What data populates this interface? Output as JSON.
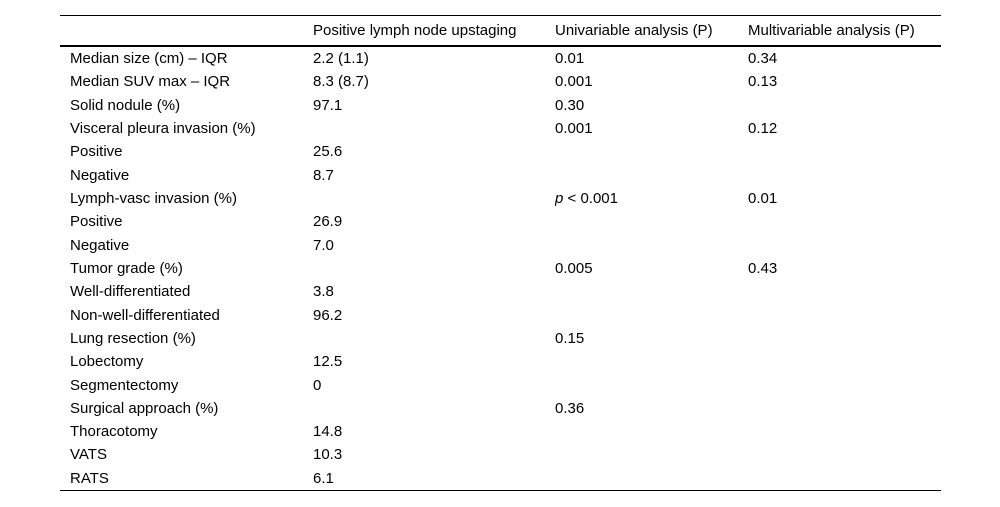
{
  "table": {
    "columns": [
      "",
      "Positive lymph node upstaging",
      "Univariable analysis (P)",
      "Multivariable analysis (P)"
    ],
    "rows": [
      {
        "label": "Median size (cm) – IQR",
        "upstaging": "2.2 (1.1)",
        "univariable": "0.01",
        "multivariable": "0.34"
      },
      {
        "label": "Median SUV max – IQR",
        "upstaging": "8.3 (8.7)",
        "univariable": "0.001",
        "multivariable": "0.13"
      },
      {
        "label": "Solid nodule (%)",
        "upstaging": "97.1",
        "univariable": "0.30",
        "multivariable": ""
      },
      {
        "label": "Visceral pleura invasion (%)",
        "upstaging": "",
        "univariable": "0.001",
        "multivariable": "0.12"
      },
      {
        "label": "Positive",
        "upstaging": "25.6",
        "univariable": "",
        "multivariable": ""
      },
      {
        "label": "Negative",
        "upstaging": "8.7",
        "univariable": "",
        "multivariable": ""
      },
      {
        "label": "Lymph-vasc invasion (%)",
        "upstaging": "",
        "univariable": "p < 0.001",
        "multivariable": "0.01"
      },
      {
        "label": "Positive",
        "upstaging": "26.9",
        "univariable": "",
        "multivariable": ""
      },
      {
        "label": "Negative",
        "upstaging": "7.0",
        "univariable": "",
        "multivariable": ""
      },
      {
        "label": "Tumor grade (%)",
        "upstaging": "",
        "univariable": "0.005",
        "multivariable": "0.43"
      },
      {
        "label": "Well-differentiated",
        "upstaging": "3.8",
        "univariable": "",
        "multivariable": ""
      },
      {
        "label": "Non-well-differentiated",
        "upstaging": "96.2",
        "univariable": "",
        "multivariable": ""
      },
      {
        "label": "Lung resection (%)",
        "upstaging": "",
        "univariable": "0.15",
        "multivariable": ""
      },
      {
        "label": "Lobectomy",
        "upstaging": "12.5",
        "univariable": "",
        "multivariable": ""
      },
      {
        "label": "Segmentectomy",
        "upstaging": "0",
        "univariable": "",
        "multivariable": ""
      },
      {
        "label": "Surgical approach (%)",
        "upstaging": "",
        "univariable": "0.36",
        "multivariable": ""
      },
      {
        "label": "Thoracotomy",
        "upstaging": "14.8",
        "univariable": "",
        "multivariable": ""
      },
      {
        "label": "VATS",
        "upstaging": "10.3",
        "univariable": "",
        "multivariable": ""
      },
      {
        "label": "RATS",
        "upstaging": "6.1",
        "univariable": "",
        "multivariable": ""
      }
    ],
    "text_color": "#000000",
    "background_color": "#ffffff"
  }
}
